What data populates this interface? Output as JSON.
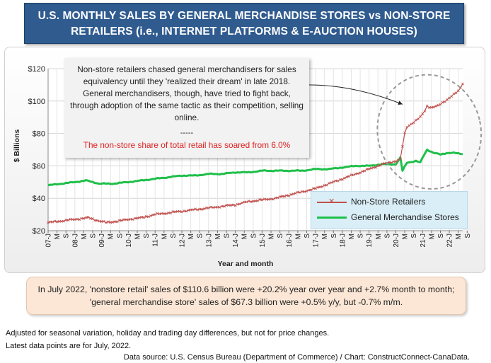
{
  "title": {
    "line1": "U.S. MONTHLY SALES BY GENERAL MERCHANDISE STORES vs NON-STORE",
    "line2": "RETAILERS (i.e., INTERNET PLATFORMS & E-AUCTION HOUSES)"
  },
  "annotation": {
    "text": "Non-store retailers chased general merchandisers for sales equivalency until they 'realized their dream' in late 2018. General merchandisers, though, have tried to fight back, through adoption of the same tactic as their competition, selling online.",
    "separator": "-----",
    "highlight": "The non-store share of total retail has soared from 6.0%"
  },
  "note": "In July 2022, 'nonstore retail' sales of $110.6 billion were +20.2% year over year and +2.7% month to month; 'general merchandise store' sales of $67.3 billion were +0.5% y/y, but -0.7% m/m.",
  "footnotes": {
    "line1": "Adjusted for seasonal variation, holiday and trading day differences, but not for price changes.",
    "line2": "Latest data points are for July, 2022.",
    "source": "Data source: U.S. Census Bureau (Department of Commerce) / Chart: ConstructConnect-CanaData."
  },
  "colors": {
    "non_store": "#c0504d",
    "general_merchandise": "#1fbf4a",
    "title_bg": "#2f5b8f",
    "highlight_text": "#e02020"
  },
  "chart_data": {
    "type": "line",
    "xlabel": "Year and month",
    "ylabel": "$ Billions",
    "ylim": [
      20,
      120
    ],
    "y_ticks": [
      "$20",
      "$40",
      "$60",
      "$80",
      "$100",
      "$120"
    ],
    "y_tick_values": [
      20,
      40,
      60,
      80,
      100,
      120
    ],
    "x_tick_labels": [
      "07-J",
      "M",
      "S",
      "08-J",
      "M",
      "S",
      "09-J",
      "M",
      "S",
      "10-J",
      "M",
      "S",
      "11-J",
      "M",
      "S",
      "12-J",
      "M",
      "S",
      "13-J",
      "M",
      "S",
      "14-J",
      "M",
      "S",
      "15-J",
      "M",
      "S",
      "16-J",
      "M",
      "S",
      "17-J",
      "M",
      "S",
      "18-J",
      "M",
      "S",
      "19-J",
      "M",
      "S",
      "20-J",
      "M",
      "S",
      "21-J",
      "M",
      "S",
      "22-J",
      "M",
      "S"
    ],
    "x_range": [
      "2007-01",
      "2022-07"
    ],
    "legend_position": "bottom-right",
    "grid": true,
    "series": [
      {
        "name": "Non-Store Retailers",
        "color": "#c0504d",
        "marker": "x",
        "anchors": [
          [
            "2007-01",
            25
          ],
          [
            "2007-07",
            26
          ],
          [
            "2008-01",
            27
          ],
          [
            "2008-07",
            28
          ],
          [
            "2008-12",
            26
          ],
          [
            "2009-03",
            25
          ],
          [
            "2009-09",
            26
          ],
          [
            "2010-01",
            27
          ],
          [
            "2010-07",
            28
          ],
          [
            "2011-01",
            30
          ],
          [
            "2011-07",
            31
          ],
          [
            "2012-01",
            32
          ],
          [
            "2012-07",
            33
          ],
          [
            "2013-01",
            34
          ],
          [
            "2013-07",
            35
          ],
          [
            "2014-01",
            36
          ],
          [
            "2014-07",
            38
          ],
          [
            "2015-01",
            39
          ],
          [
            "2015-07",
            40
          ],
          [
            "2016-01",
            42
          ],
          [
            "2016-07",
            44
          ],
          [
            "2017-01",
            46
          ],
          [
            "2017-07",
            49
          ],
          [
            "2018-01",
            52
          ],
          [
            "2018-07",
            55
          ],
          [
            "2019-01",
            58
          ],
          [
            "2019-07",
            61
          ],
          [
            "2020-01",
            63
          ],
          [
            "2020-03",
            64
          ],
          [
            "2020-04",
            72
          ],
          [
            "2020-05",
            80
          ],
          [
            "2020-06",
            84
          ],
          [
            "2020-09",
            87
          ],
          [
            "2020-12",
            90
          ],
          [
            "2021-02",
            94
          ],
          [
            "2021-03",
            97
          ],
          [
            "2021-05",
            96
          ],
          [
            "2021-08",
            97
          ],
          [
            "2021-12",
            101
          ],
          [
            "2022-02",
            103
          ],
          [
            "2022-05",
            106
          ],
          [
            "2022-07",
            110.6
          ]
        ]
      },
      {
        "name": "General Merchandise Stores",
        "color": "#1fbf4a",
        "anchors": [
          [
            "2007-01",
            48
          ],
          [
            "2007-07",
            49
          ],
          [
            "2008-01",
            50
          ],
          [
            "2008-06",
            51
          ],
          [
            "2008-12",
            49
          ],
          [
            "2009-06",
            49
          ],
          [
            "2010-01",
            50
          ],
          [
            "2010-07",
            51
          ],
          [
            "2011-01",
            52
          ],
          [
            "2011-07",
            53
          ],
          [
            "2012-01",
            54
          ],
          [
            "2012-07",
            54
          ],
          [
            "2013-01",
            55
          ],
          [
            "2013-07",
            55
          ],
          [
            "2014-01",
            56
          ],
          [
            "2014-07",
            56
          ],
          [
            "2015-01",
            57
          ],
          [
            "2015-07",
            57
          ],
          [
            "2016-01",
            57
          ],
          [
            "2016-07",
            57
          ],
          [
            "2017-01",
            58
          ],
          [
            "2017-07",
            58
          ],
          [
            "2018-01",
            59
          ],
          [
            "2018-07",
            60
          ],
          [
            "2019-01",
            60
          ],
          [
            "2019-07",
            61
          ],
          [
            "2020-01",
            61
          ],
          [
            "2020-03",
            65
          ],
          [
            "2020-04",
            57
          ],
          [
            "2020-06",
            62
          ],
          [
            "2020-10",
            63
          ],
          [
            "2020-12",
            62
          ],
          [
            "2021-01",
            65
          ],
          [
            "2021-03",
            70
          ],
          [
            "2021-06",
            68
          ],
          [
            "2021-09",
            67
          ],
          [
            "2021-12",
            68
          ],
          [
            "2022-03",
            68
          ],
          [
            "2022-07",
            67.3
          ]
        ]
      }
    ]
  }
}
